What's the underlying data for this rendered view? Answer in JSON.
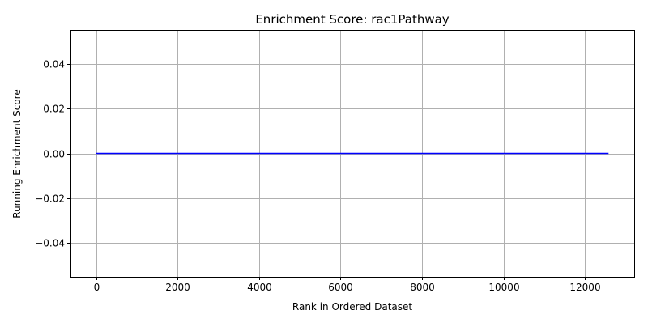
{
  "chart_data": {
    "type": "line",
    "title": "Enrichment Score: rac1Pathway",
    "xlabel": "Rank in Ordered Dataset",
    "ylabel": "Running Enrichment Score",
    "xlim": [
      -630,
      13210
    ],
    "ylim": [
      -0.055,
      0.055
    ],
    "x_ticks": [
      0,
      2000,
      4000,
      6000,
      8000,
      10000,
      12000
    ],
    "x_tick_labels": [
      "0",
      "2000",
      "4000",
      "6000",
      "8000",
      "10000",
      "12000"
    ],
    "y_ticks": [
      0.04,
      0.02,
      0.0,
      -0.02,
      -0.04
    ],
    "y_tick_labels": [
      "0.04",
      "0.02",
      "0.00",
      "−0.02",
      "−0.04"
    ],
    "grid": true,
    "series": [
      {
        "color": "#0000ff",
        "x": [
          0,
          12580
        ],
        "y": [
          0.0,
          0.0
        ]
      }
    ]
  }
}
